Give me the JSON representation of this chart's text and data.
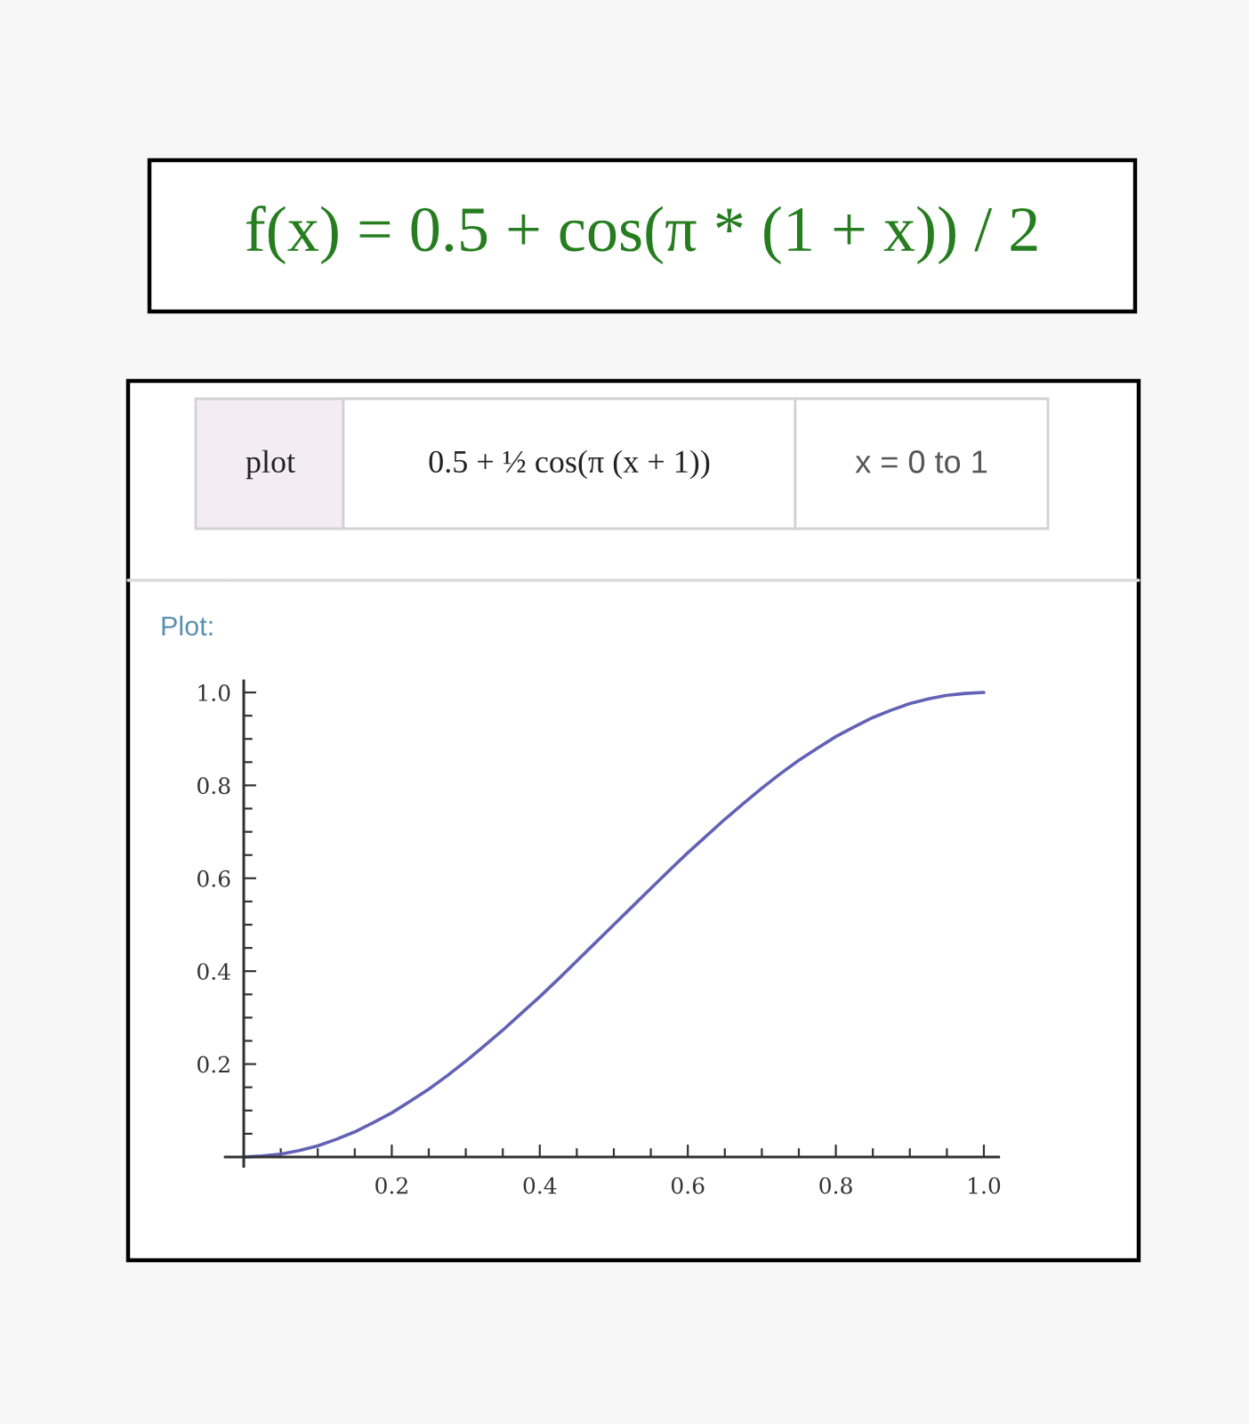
{
  "chart_data": {
    "type": "line",
    "title": "f(x) = 0.5 + cos(π * (1 + x)) / 2",
    "annotations": [
      "plot",
      "0.5 + ½ cos(π (x + 1))",
      "x = 0 to 1",
      "Plot:"
    ],
    "x": [
      0,
      0.025,
      0.05,
      0.075,
      0.1,
      0.125,
      0.15,
      0.175,
      0.2,
      0.225,
      0.25,
      0.275,
      0.3,
      0.325,
      0.35,
      0.375,
      0.4,
      0.425,
      0.45,
      0.475,
      0.5,
      0.525,
      0.55,
      0.575,
      0.6,
      0.625,
      0.65,
      0.675,
      0.7,
      0.725,
      0.75,
      0.775,
      0.8,
      0.825,
      0.85,
      0.875,
      0.9,
      0.925,
      0.95,
      0.975,
      1
    ],
    "series": [
      {
        "color": "#6262b6",
        "values": [
          0,
          0.002,
          0.006,
          0.014,
          0.024,
          0.038,
          0.054,
          0.074,
          0.095,
          0.12,
          0.146,
          0.175,
          0.206,
          0.239,
          0.273,
          0.309,
          0.345,
          0.383,
          0.422,
          0.461,
          0.5,
          0.539,
          0.578,
          0.617,
          0.655,
          0.691,
          0.727,
          0.761,
          0.794,
          0.825,
          0.854,
          0.88,
          0.905,
          0.926,
          0.946,
          0.962,
          0.976,
          0.986,
          0.994,
          0.998,
          1
        ]
      }
    ],
    "xlim": [
      -0.025,
      1.02
    ],
    "ylim": [
      -0.02,
      1.025
    ],
    "xticks": [
      {
        "value": 0.05,
        "label": null
      },
      {
        "value": 0.1,
        "label": null
      },
      {
        "value": 0.15,
        "label": null
      },
      0.2,
      {
        "value": 0.25,
        "label": null
      },
      {
        "value": 0.3,
        "label": null
      },
      {
        "value": 0.35,
        "label": null
      },
      0.4,
      {
        "value": 0.45,
        "label": null
      },
      {
        "value": 0.5,
        "label": null
      },
      {
        "value": 0.55,
        "label": null
      },
      0.6,
      {
        "value": 0.65,
        "label": null
      },
      {
        "value": 0.7,
        "label": null
      },
      {
        "value": 0.75,
        "label": null
      },
      0.8,
      {
        "value": 0.85,
        "label": null
      },
      {
        "value": 0.9,
        "label": null
      },
      {
        "value": 0.95,
        "label": null
      },
      {
        "value": 1,
        "label": "1.0"
      }
    ],
    "yticks": [
      {
        "value": 0.05,
        "label": null
      },
      {
        "value": 0.1,
        "label": null
      },
      {
        "value": 0.15,
        "label": null
      },
      0.2,
      {
        "value": 0.25,
        "label": null
      },
      {
        "value": 0.3,
        "label": null
      },
      {
        "value": 0.35,
        "label": null
      },
      0.4,
      {
        "value": 0.45,
        "label": null
      },
      {
        "value": 0.5,
        "label": null
      },
      {
        "value": 0.55,
        "label": null
      },
      0.6,
      {
        "value": 0.65,
        "label": null
      },
      {
        "value": 0.7,
        "label": null
      },
      {
        "value": 0.75,
        "label": null
      },
      0.8,
      {
        "value": 0.85,
        "label": null
      },
      {
        "value": 0.9,
        "label": null
      },
      {
        "value": 0.95,
        "label": null
      },
      {
        "value": 1,
        "label": "1.0"
      }
    ]
  }
}
